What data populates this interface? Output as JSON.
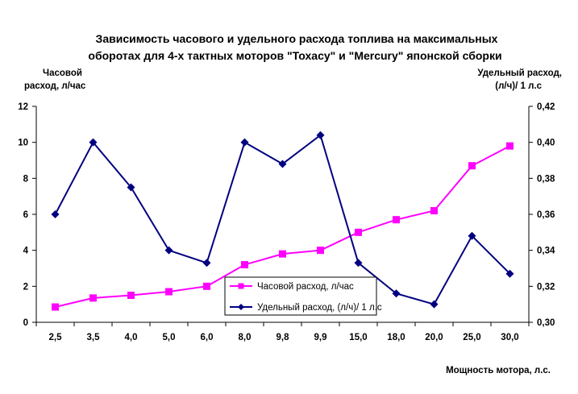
{
  "chart_data": {
    "type": "line",
    "title_line1": "Зависимость часового и удельного расхода топлива на максимальных",
    "title_line2": "оборотах для 4-х тактных моторов \"Тохасу\" и \"Mercury\" японской сборки",
    "ylabel_left_line1": "Часовой",
    "ylabel_left_line2": "расход, л/час",
    "ylabel_right_line1": "Удельный расход,",
    "ylabel_right_line2": "(л/ч)/ 1 л.с",
    "xlabel": "Мощность мотора, л.с.",
    "categories": [
      "2,5",
      "3,5",
      "4,0",
      "5,0",
      "6,0",
      "8,0",
      "9,8",
      "9,9",
      "15,0",
      "18,0",
      "20,0",
      "25,0",
      "30,0"
    ],
    "y_left": {
      "ylim": [
        0,
        12
      ],
      "ticks": [
        "0",
        "2",
        "4",
        "6",
        "8",
        "10",
        "12"
      ]
    },
    "y_right": {
      "ylim": [
        0.3,
        0.42
      ],
      "ticks": [
        "0,30",
        "0,32",
        "0,34",
        "0,36",
        "0,38",
        "0,40",
        "0,42"
      ]
    },
    "series": [
      {
        "name": "Часовой расход, л/час",
        "axis": "left",
        "color": "#ff00ff",
        "marker": "square",
        "values": [
          0.85,
          1.35,
          1.5,
          1.7,
          2.0,
          3.2,
          3.8,
          4.0,
          5.0,
          5.7,
          6.2,
          8.7,
          9.8
        ]
      },
      {
        "name": "Удельный расход, (л/ч)/ 1 л.с",
        "axis": "right",
        "color": "#000080",
        "marker": "diamond",
        "values": [
          0.36,
          0.4,
          0.375,
          0.34,
          0.333,
          0.4,
          0.388,
          0.404,
          0.333,
          0.316,
          0.31,
          0.348,
          0.327
        ]
      }
    ],
    "legend_placement": "bottom-center inside plot",
    "grid": false
  }
}
